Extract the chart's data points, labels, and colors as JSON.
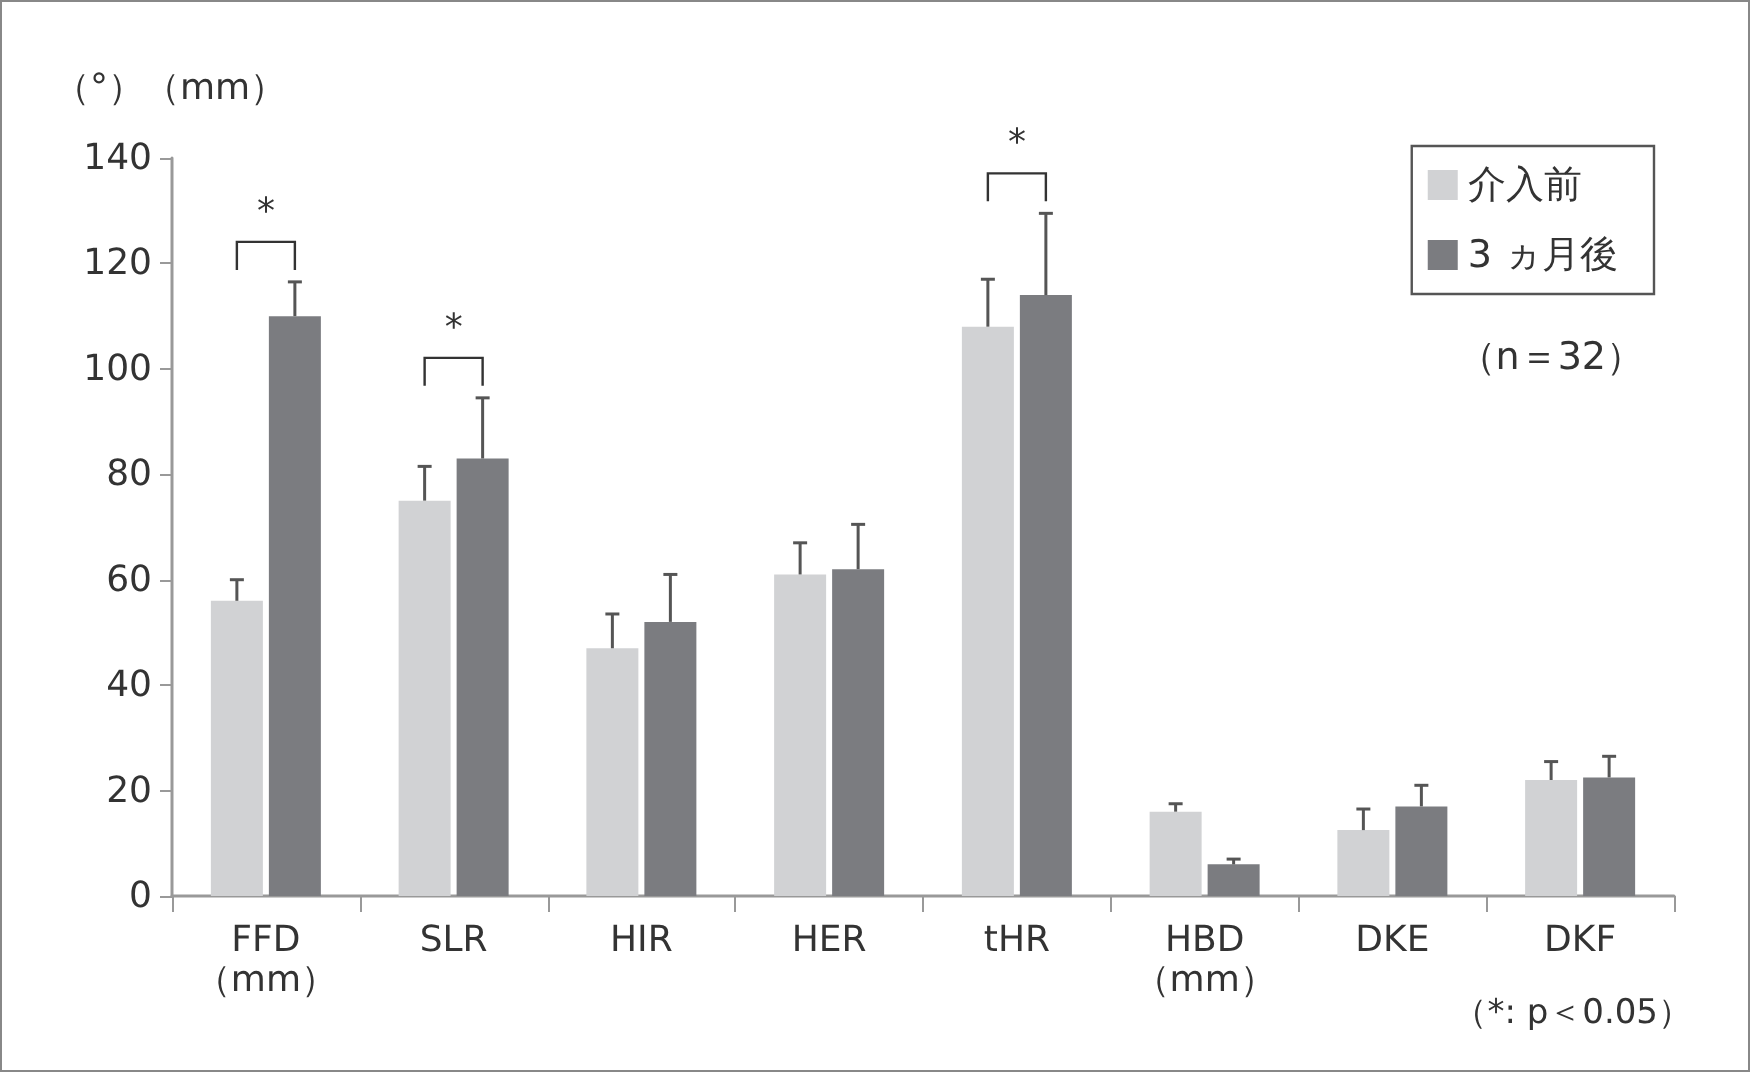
{
  "chart_data": {
    "type": "bar",
    "ylabel": "（°）（mm）",
    "categories": [
      "FFD\n（mm）",
      "SLR",
      "HIR",
      "HER",
      "tHR",
      "HBD\n（mm）",
      "DKE",
      "DKF"
    ],
    "series": [
      {
        "name": "介入前",
        "color": "#d1d2d4",
        "values": [
          56,
          75,
          47,
          61,
          108,
          16,
          12.5,
          22
        ],
        "errors": [
          [
            56,
            60
          ],
          [
            75,
            81.5
          ],
          [
            47,
            53.5
          ],
          [
            61,
            67
          ],
          [
            108,
            117
          ],
          [
            16,
            17.5
          ],
          [
            12.5,
            16.5
          ],
          [
            22,
            25.5
          ]
        ]
      },
      {
        "name": "3 ヵ月後",
        "color": "#7b7c80",
        "values": [
          110,
          83,
          52,
          62,
          114,
          6,
          17,
          22.5
        ],
        "errors": [
          [
            110,
            116.5
          ],
          [
            83,
            94.5
          ],
          [
            52,
            61
          ],
          [
            62,
            70.5
          ],
          [
            114,
            129.5
          ],
          [
            6,
            7
          ],
          [
            17,
            21
          ],
          [
            22.5,
            26.5
          ]
        ]
      }
    ],
    "ylim": [
      0,
      140
    ],
    "yticks": [
      0,
      20,
      40,
      60,
      80,
      100,
      120,
      140
    ],
    "grid": false,
    "legend": "top right",
    "annotations": [
      "*",
      "*",
      "*",
      "（n＝32）",
      "（*: p＜0.05）"
    ]
  }
}
